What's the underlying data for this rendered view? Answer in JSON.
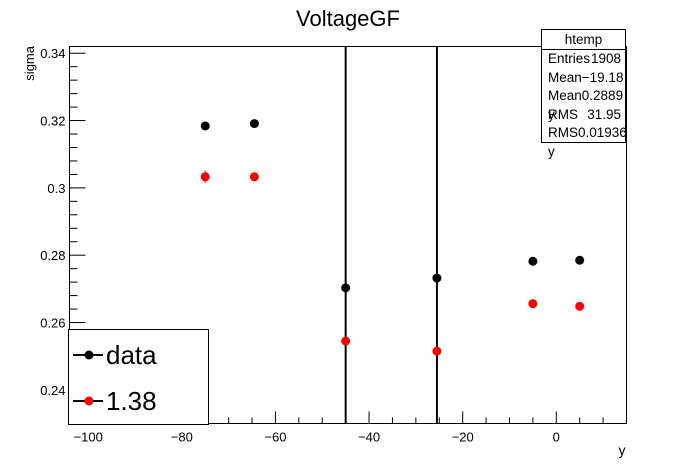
{
  "chart_data": {
    "type": "scatter",
    "title": "VoltageGF",
    "xlabel": "y",
    "ylabel": "sigma",
    "xlim": [
      -104,
      15
    ],
    "ylim": [
      0.23,
      0.342
    ],
    "xticks": [
      -100,
      -80,
      -60,
      -40,
      -20,
      0
    ],
    "yticks": [
      0.24,
      0.26,
      0.28,
      0.3,
      0.32,
      0.34
    ],
    "ytick_labels": [
      "0.24",
      "0.26",
      "0.28",
      "0.3",
      "0.32",
      "0.34"
    ],
    "xtick_labels": [
      "−100",
      "−80",
      "−60",
      "−40",
      "−20",
      "0"
    ],
    "vertical_lines": [
      -45,
      -25.5
    ],
    "grid": false,
    "legend_placement": "bottom-left",
    "series": [
      {
        "name": "data",
        "color": "#000000",
        "x": [
          -75,
          -64.5,
          -45,
          -25.5,
          -5,
          5
        ],
        "y": [
          0.3184,
          0.3191,
          0.2703,
          0.2732,
          0.2782,
          0.2785
        ],
        "yerr": [
          0.0008,
          0.0008,
          0.0008,
          0.0008,
          0.0008,
          0.0008
        ]
      },
      {
        "name": "1.38",
        "color": "#ff0000",
        "x": [
          -75,
          -64.5,
          -45,
          -25.5,
          -5,
          5
        ],
        "y": [
          0.3033,
          0.3033,
          0.2545,
          0.2515,
          0.2656,
          0.2648
        ],
        "yerr": [
          0.0018,
          0.0008,
          0.0008,
          0.0008,
          0.0008,
          0.0008
        ]
      }
    ]
  },
  "stats_box": {
    "title": "htemp",
    "rows": [
      {
        "label": "Entries",
        "value": "1908"
      },
      {
        "label": "Mean",
        "value": "−19.18"
      },
      {
        "label": "Mean y",
        "value": "0.2889"
      },
      {
        "label": "RMS",
        "value": "31.95"
      },
      {
        "label": "RMS y",
        "value": "0.01936"
      }
    ]
  },
  "legend": {
    "entries": [
      {
        "label": "data",
        "color": "#000000"
      },
      {
        "label": "1.38",
        "color": "#ff0000"
      }
    ]
  }
}
